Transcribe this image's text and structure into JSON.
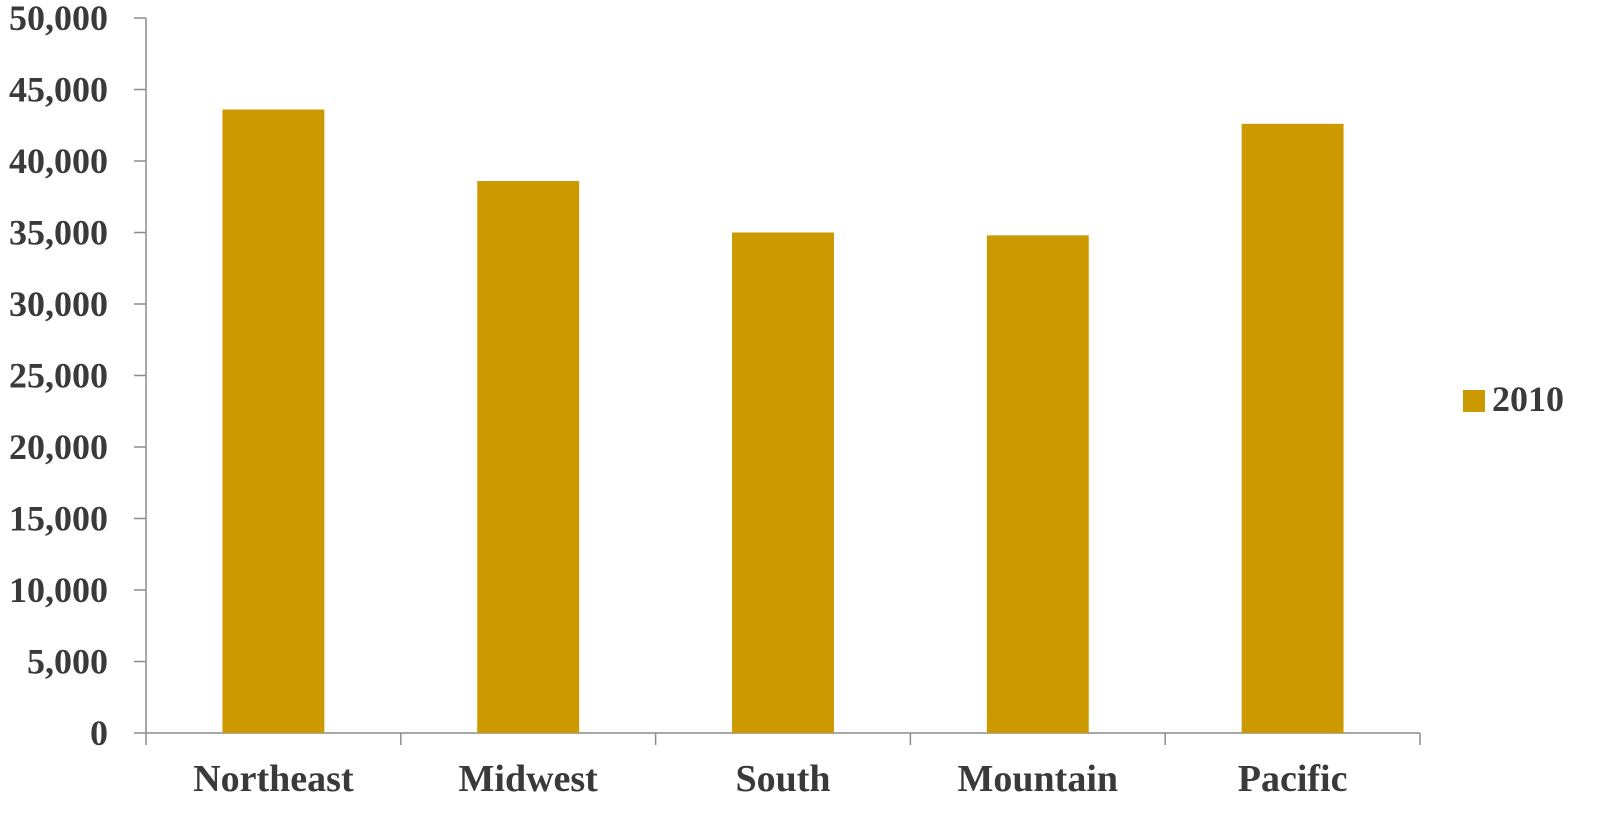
{
  "chart_data": {
    "type": "bar",
    "categories": [
      "Northeast",
      "Midwest",
      "South",
      "Mountain",
      "Pacific"
    ],
    "series": [
      {
        "name": "2010",
        "values": [
          43600,
          38600,
          35000,
          34800,
          42600
        ],
        "color": "#CC9900"
      }
    ],
    "ylim": [
      0,
      50000
    ],
    "yticks": [
      0,
      5000,
      10000,
      15000,
      20000,
      25000,
      30000,
      35000,
      40000,
      45000,
      50000
    ],
    "ytick_labels": [
      "0",
      "5,000",
      "10,000",
      "15,000",
      "20,000",
      "25,000",
      "30,000",
      "35,000",
      "40,000",
      "45,000",
      "50,000"
    ],
    "grid": false,
    "legend_position": "right",
    "title": "",
    "xlabel": "",
    "ylabel": ""
  }
}
